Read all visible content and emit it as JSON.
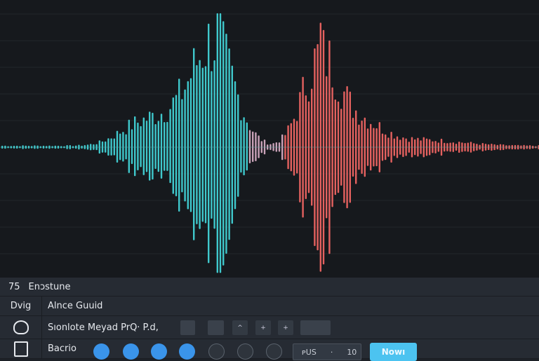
{
  "waveform": {
    "left_color": "#3fc8cc",
    "mid_color": "#c9a2b8",
    "right_color": "#e4615f",
    "background": "#16191d"
  },
  "header": {
    "number": "75",
    "title": "Enɔstune"
  },
  "row2": {
    "left_label": "Dvig",
    "label": "Alnce Guuid"
  },
  "row3": {
    "icon": "circle-icon",
    "label": "Sıonlote Meyad PrQ· P.d,",
    "buttons": [
      "",
      "",
      "^",
      "+",
      "+",
      ""
    ]
  },
  "row4": {
    "icon": "square-icon",
    "label": "Bacrio",
    "dots": [
      true,
      true,
      true,
      true,
      false,
      false,
      false
    ],
    "field_label": "ᴘUS",
    "field_sep": "·",
    "field_value": "10",
    "action_label": "Nowı",
    "accent": "#4cc3f0"
  }
}
